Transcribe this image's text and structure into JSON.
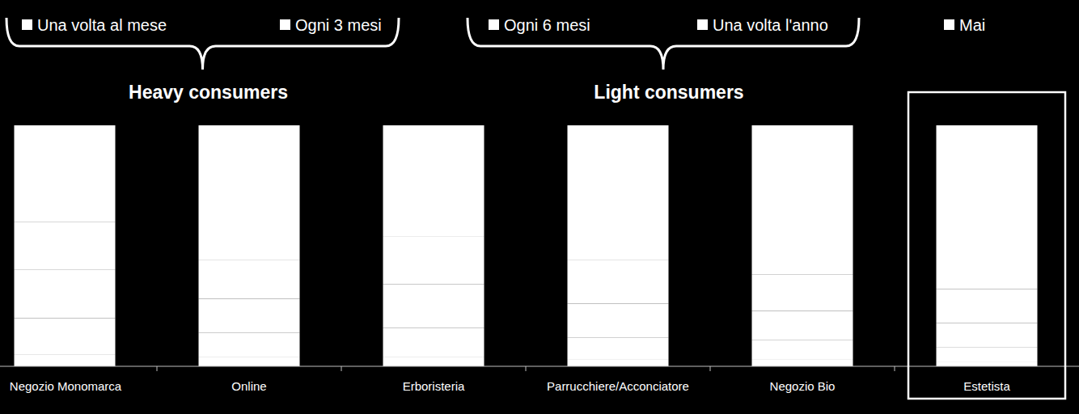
{
  "chart_data": {
    "type": "bar",
    "stacked": true,
    "tick_labels": "x",
    "legend": "top",
    "annotations": [
      "Heavy consumers",
      "Light consumers"
    ],
    "categories": [
      "Negozio Monomarca",
      "Online",
      "Erboristeria",
      "Parrucchiere/Acconciatore",
      "Negozio Bio",
      "Estetista"
    ],
    "ylim": [
      0,
      100
    ],
    "series": [
      {
        "name": "Una volta al mese",
        "color": "#ffffff",
        "values": [
          5,
          4,
          4,
          3,
          3,
          2
        ]
      },
      {
        "name": "Ogni 3 mesi",
        "color": "#ffffff",
        "values": [
          15,
          10,
          12,
          9,
          8,
          6
        ]
      },
      {
        "name": "Ogni 6 mesi",
        "color": "#ffffff",
        "values": [
          20,
          14,
          18,
          14,
          12,
          10
        ]
      },
      {
        "name": "Una volta l'anno",
        "color": "#ffffff",
        "values": [
          20,
          16,
          20,
          18,
          15,
          14
        ]
      },
      {
        "name": "Mai",
        "color": "#ffffff",
        "values": [
          40,
          56,
          46,
          56,
          62,
          68
        ]
      }
    ]
  }
}
